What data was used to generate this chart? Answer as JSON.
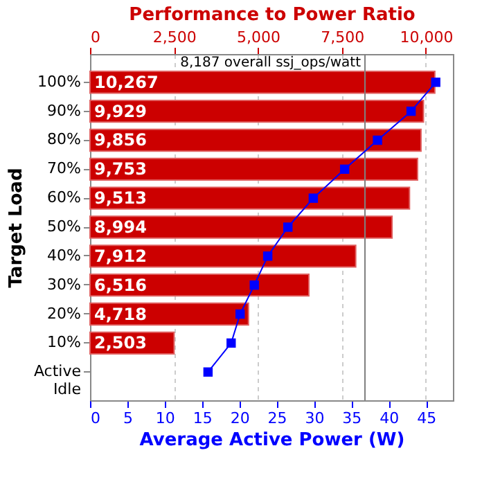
{
  "chart_data": {
    "type": "bar",
    "orientation": "horizontal",
    "categories": [
      "100%",
      "90%",
      "80%",
      "70%",
      "60%",
      "50%",
      "40%",
      "30%",
      "20%",
      "10%",
      "Active Idle"
    ],
    "series": [
      {
        "type": "bar",
        "axis": "x2",
        "color": "#cc0000",
        "values": [
          10267,
          9929,
          9856,
          9753,
          9513,
          8994,
          7912,
          6516,
          4718,
          2503,
          null
        ],
        "value_labels": [
          "10,267",
          "9,929",
          "9,856",
          "9,753",
          "9,513",
          "8,994",
          "7,912",
          "6,516",
          "4,718",
          "2,503",
          null
        ]
      },
      {
        "type": "line",
        "color": "#0000ff",
        "marker": "square",
        "values": [
          46.3,
          43.0,
          38.5,
          34.1,
          29.9,
          26.5,
          23.8,
          22.0,
          20.1,
          18.9,
          15.8
        ]
      }
    ],
    "x2label": "Performance to Power Ratio",
    "xlabel": "Average Active Power (W)",
    "ylabel": "Target Load",
    "xlim": [
      0,
      48.6
    ],
    "xticks": [
      0,
      5,
      10,
      15,
      20,
      25,
      30,
      35,
      40,
      45
    ],
    "x2lim": [
      0,
      10806
    ],
    "x2ticks": [
      0,
      {
        "value": 2500,
        "label": "2,500"
      },
      {
        "value": 5000,
        "label": "5,000"
      },
      {
        "value": 7500,
        "label": "7,500"
      },
      {
        "value": 10000,
        "label": "10,000"
      }
    ],
    "ref_lines": [
      {
        "axis": "x2",
        "value": 8187,
        "label": "8,187 overall ssj_ops/watt",
        "color": "#808080"
      }
    ],
    "grid": "x2"
  }
}
